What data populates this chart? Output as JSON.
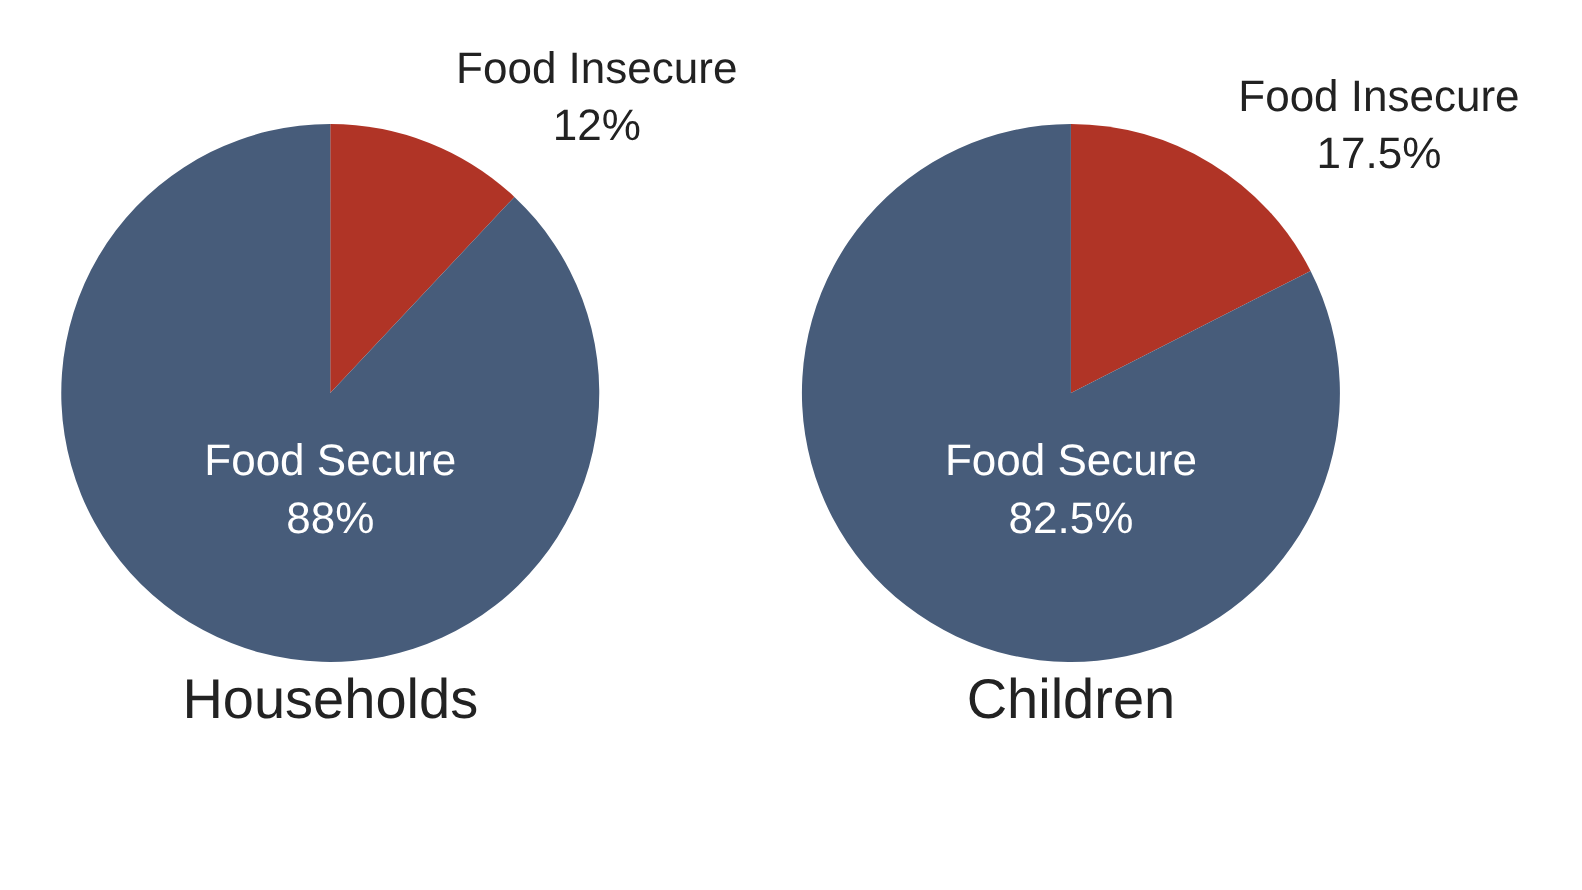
{
  "chart_data": [
    {
      "type": "pie",
      "title": "Households",
      "categories": [
        "Food Insecure",
        "Food Secure"
      ],
      "values": [
        12,
        88
      ],
      "colors": [
        "#b03426",
        "#475c7a"
      ],
      "value_labels": [
        "12%",
        "88%"
      ]
    },
    {
      "type": "pie",
      "title": "Children",
      "categories": [
        "Food Insecure",
        "Food Secure"
      ],
      "values": [
        17.5,
        82.5
      ],
      "colors": [
        "#b03426",
        "#475c7a"
      ],
      "value_labels": [
        "17.5%",
        "82.5%"
      ]
    }
  ]
}
